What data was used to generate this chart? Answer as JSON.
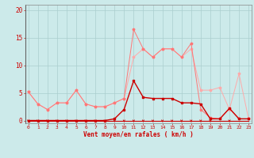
{
  "x": [
    0,
    1,
    2,
    3,
    4,
    5,
    6,
    7,
    8,
    9,
    10,
    11,
    12,
    13,
    14,
    15,
    16,
    17,
    18,
    19,
    20,
    21,
    22,
    23
  ],
  "line_light": [
    5.2,
    3.0,
    2.0,
    3.2,
    3.2,
    5.5,
    3.0,
    2.5,
    2.5,
    3.2,
    4.0,
    11.5,
    13.0,
    11.5,
    13.0,
    13.0,
    11.5,
    13.0,
    5.5,
    5.5,
    6.0,
    2.0,
    8.5,
    0.3
  ],
  "line_mid": [
    5.2,
    3.0,
    2.0,
    3.2,
    3.2,
    5.5,
    3.0,
    2.5,
    2.5,
    3.2,
    4.0,
    16.5,
    13.0,
    11.5,
    13.0,
    13.0,
    11.5,
    14.0,
    2.0,
    0.5,
    0.3,
    2.2,
    0.3,
    0.3
  ],
  "line_dark": [
    0.0,
    0.0,
    0.0,
    0.0,
    0.0,
    0.0,
    0.0,
    0.0,
    0.0,
    0.3,
    2.0,
    7.2,
    4.2,
    4.0,
    4.0,
    4.0,
    3.2,
    3.2,
    3.0,
    0.3,
    0.3,
    2.2,
    0.3,
    0.3
  ],
  "line_zero": [
    0.0,
    0.0,
    0.0,
    0.0,
    0.0,
    0.0,
    0.0,
    0.0,
    0.0,
    0.0,
    0.0,
    0.0,
    0.0,
    0.0,
    0.0,
    0.0,
    0.0,
    0.0,
    0.0,
    0.0,
    0.0,
    0.0,
    0.0,
    0.0
  ],
  "arrows_x": [
    0,
    1,
    2,
    3,
    4,
    5,
    6,
    7,
    8,
    9,
    10,
    11,
    12,
    13,
    14,
    15,
    16,
    17,
    18,
    19,
    21
  ],
  "bg_color": "#cceaea",
  "grid_color": "#aacece",
  "line_light_color": "#ffaaaa",
  "line_mid_color": "#ff7777",
  "line_dark_color": "#cc0000",
  "line_zero_color": "#cc0000",
  "arrow_color": "#cc0000",
  "axis_color": "#cc0000",
  "spine_color": "#888888",
  "xlabel": "Vent moyen/en rafales ( km/h )",
  "yticks": [
    0,
    5,
    10,
    15,
    20
  ],
  "xlim": [
    -0.3,
    23.3
  ],
  "ylim": [
    -0.5,
    21.0
  ]
}
